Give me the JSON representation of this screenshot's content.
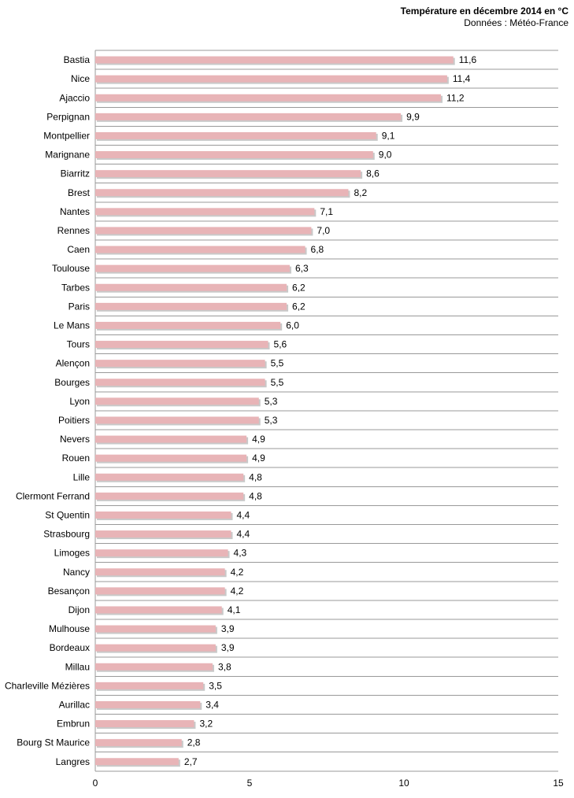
{
  "header": {
    "title": "Température en décembre 2014 en °C",
    "source": "Données : Météo-France"
  },
  "colors": {
    "bar": "#e8b4b7",
    "bar_shadow": "#c9c9c9",
    "grid": "#999999"
  },
  "chart_data": {
    "type": "bar",
    "orientation": "horizontal",
    "title": "Température en décembre 2014 en °C",
    "subtitle": "Données : Météo-France",
    "xlim": [
      0,
      15
    ],
    "xticks": [
      0,
      5,
      10,
      15
    ],
    "grid": true,
    "categories": [
      "Bastia",
      "Nice",
      "Ajaccio",
      "Perpignan",
      "Montpellier",
      "Marignane",
      "Biarritz",
      "Brest",
      "Nantes",
      "Rennes",
      "Caen",
      "Toulouse",
      "Tarbes",
      "Paris",
      "Le Mans",
      "Tours",
      "Alençon",
      "Bourges",
      "Lyon",
      "Poitiers",
      "Nevers",
      "Rouen",
      "Lille",
      "Clermont Ferrand",
      "St Quentin",
      "Strasbourg",
      "Limoges",
      "Nancy",
      "Besançon",
      "Dijon",
      "Mulhouse",
      "Bordeaux",
      "Millau",
      "Charleville Mézières",
      "Aurillac",
      "Embrun",
      "Bourg St Maurice",
      "Langres"
    ],
    "values": [
      11.6,
      11.4,
      11.2,
      9.9,
      9.1,
      9.0,
      8.6,
      8.2,
      7.1,
      7.0,
      6.8,
      6.3,
      6.2,
      6.2,
      6.0,
      5.6,
      5.5,
      5.5,
      5.3,
      5.3,
      4.9,
      4.9,
      4.8,
      4.8,
      4.4,
      4.4,
      4.3,
      4.2,
      4.2,
      4.1,
      3.9,
      3.9,
      3.8,
      3.5,
      3.4,
      3.2,
      2.8,
      2.7
    ],
    "value_labels": [
      "11,6",
      "11,4",
      "11,2",
      "9,9",
      "9,1",
      "9,0",
      "8,6",
      "8,2",
      "7,1",
      "7,0",
      "6,8",
      "6,3",
      "6,2",
      "6,2",
      "6,0",
      "5,6",
      "5,5",
      "5,5",
      "5,3",
      "5,3",
      "4,9",
      "4,9",
      "4,8",
      "4,8",
      "4,4",
      "4,4",
      "4,3",
      "4,2",
      "4,2",
      "4,1",
      "3,9",
      "3,9",
      "3,8",
      "3,5",
      "3,4",
      "3,2",
      "2,8",
      "2,7"
    ]
  }
}
